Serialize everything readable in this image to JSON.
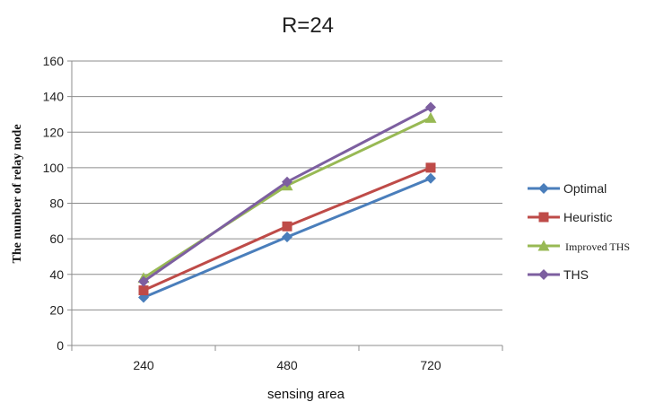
{
  "chart_data": {
    "type": "line",
    "title": "R=24",
    "xlabel": "sensing area",
    "ylabel": "The number of relay node",
    "categories": [
      "240",
      "480",
      "720"
    ],
    "ylim": [
      0,
      160
    ],
    "yticks": [
      "0",
      "20",
      "40",
      "60",
      "80",
      "100",
      "120",
      "140",
      "160"
    ],
    "grid": true,
    "legend": "right",
    "series": [
      {
        "name": "Optimal",
        "values": [
          27,
          61,
          94
        ],
        "color": "#4a7ebb",
        "marker": "diamond"
      },
      {
        "name": "Heuristic",
        "values": [
          31,
          67,
          100
        ],
        "color": "#be4b48",
        "marker": "square"
      },
      {
        "name": "Improved THS",
        "values": [
          38,
          90,
          128
        ],
        "color": "#98b954",
        "marker": "triangle"
      },
      {
        "name": "THS",
        "values": [
          36,
          92,
          134
        ],
        "color": "#7d5fa0",
        "marker": "diamond"
      }
    ]
  }
}
